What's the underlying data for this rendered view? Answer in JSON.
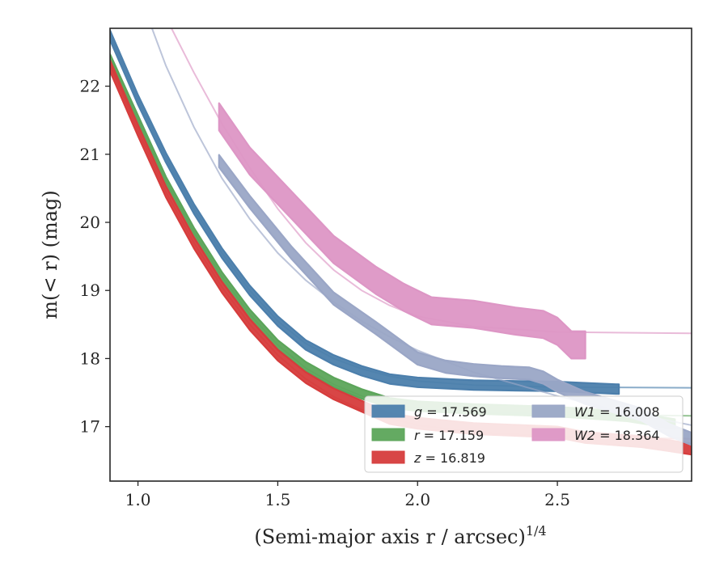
{
  "chart_data": {
    "type": "line",
    "xlabel": "(Semi-major axis r / arcsec)",
    "xlabel_sup": "1/4",
    "ylabel": "m(< r) (mag)",
    "xlim": [
      0.9,
      2.98
    ],
    "ylim": [
      22.85,
      16.2
    ],
    "y_inverted": true,
    "grid": false,
    "legend_position": "lower-right",
    "xticks": [
      {
        "value": 1.0,
        "label": "1.0"
      },
      {
        "value": 1.5,
        "label": "1.5"
      },
      {
        "value": 2.0,
        "label": "2.0"
      },
      {
        "value": 2.5,
        "label": "2.5"
      }
    ],
    "yticks": [
      {
        "value": 17,
        "label": "17"
      },
      {
        "value": 18,
        "label": "18"
      },
      {
        "value": 19,
        "label": "19"
      },
      {
        "value": 20,
        "label": "20"
      },
      {
        "value": 21,
        "label": "21"
      },
      {
        "value": 22,
        "label": "22"
      }
    ],
    "legend_columns": [
      [
        0,
        1,
        2
      ],
      [
        3,
        4
      ]
    ],
    "series": [
      {
        "name": "g = 17.569",
        "var": "g",
        "mag": "17.569",
        "color": "#4c7fac",
        "band": 0.07,
        "x": [
          0.9,
          1.0,
          1.1,
          1.2,
          1.3,
          1.4,
          1.5,
          1.6,
          1.7,
          1.8,
          1.9,
          2.0,
          2.2,
          2.5,
          2.72
        ],
        "y": [
          22.75,
          21.8,
          20.95,
          20.2,
          19.55,
          19.0,
          18.55,
          18.2,
          17.98,
          17.82,
          17.7,
          17.65,
          17.61,
          17.59,
          17.55
        ],
        "model_x": [
          0.9,
          1.0,
          1.1,
          1.2,
          1.3,
          1.4,
          1.5,
          1.6,
          1.7,
          1.8,
          1.9,
          2.0,
          2.2,
          2.5,
          2.98
        ],
        "model_y": [
          22.75,
          21.8,
          20.95,
          20.2,
          19.55,
          19.0,
          18.55,
          18.22,
          18.0,
          17.85,
          17.74,
          17.67,
          17.61,
          17.58,
          17.57
        ]
      },
      {
        "name": "r = 17.159",
        "var": "r",
        "mag": "17.159",
        "color": "#5ca55a",
        "band": 0.07,
        "x": [
          0.9,
          1.0,
          1.1,
          1.2,
          1.3,
          1.4,
          1.5,
          1.6,
          1.7,
          1.8,
          1.9,
          2.0,
          2.2,
          2.5,
          2.75,
          2.92
        ],
        "y": [
          22.4,
          21.5,
          20.6,
          19.85,
          19.2,
          18.65,
          18.2,
          17.88,
          17.65,
          17.48,
          17.35,
          17.3,
          17.26,
          17.22,
          17.15,
          17.04
        ],
        "model_x": [
          0.9,
          1.0,
          1.1,
          1.2,
          1.3,
          1.4,
          1.5,
          1.6,
          1.7,
          1.8,
          1.9,
          2.0,
          2.2,
          2.5,
          2.98
        ],
        "model_y": [
          22.4,
          21.5,
          20.6,
          19.85,
          19.2,
          18.65,
          18.2,
          17.86,
          17.62,
          17.45,
          17.33,
          17.27,
          17.22,
          17.18,
          17.16
        ]
      },
      {
        "name": "z = 16.819",
        "var": "z",
        "mag": "16.819",
        "color": "#d63c3c",
        "band": 0.08,
        "x": [
          0.9,
          1.0,
          1.1,
          1.2,
          1.3,
          1.4,
          1.5,
          1.6,
          1.7,
          1.8,
          1.9,
          2.0,
          2.2,
          2.5,
          2.6,
          2.8,
          2.9,
          2.98
        ],
        "y": [
          22.3,
          21.35,
          20.45,
          19.7,
          19.05,
          18.5,
          18.05,
          17.72,
          17.48,
          17.3,
          17.12,
          17.05,
          16.97,
          16.92,
          16.84,
          16.78,
          16.72,
          16.67
        ],
        "model_x": [
          0.9,
          1.0,
          1.1,
          1.2,
          1.3,
          1.4,
          1.5,
          1.6,
          1.7,
          1.8,
          1.9,
          2.0,
          2.2,
          2.5,
          2.98
        ],
        "model_y": [
          22.3,
          21.35,
          20.45,
          19.7,
          19.05,
          18.5,
          18.05,
          17.7,
          17.44,
          17.25,
          17.12,
          17.02,
          16.92,
          16.85,
          16.82
        ]
      },
      {
        "name": "W1 = 16.008",
        "var": "W1",
        "mag": "16.008",
        "color": "#9aa6c6",
        "band": 0.09,
        "x": [
          1.29,
          1.4,
          1.55,
          1.7,
          1.85,
          2.0,
          2.1,
          2.2,
          2.3,
          2.4,
          2.45,
          2.5,
          2.6,
          2.7,
          2.8,
          2.9,
          2.98
        ],
        "y": [
          20.9,
          20.3,
          19.55,
          18.88,
          18.45,
          18.0,
          17.88,
          17.83,
          17.8,
          17.78,
          17.72,
          17.6,
          17.42,
          17.3,
          17.18,
          16.95,
          16.82
        ],
        "model_x": [
          1.05,
          1.1,
          1.2,
          1.3,
          1.4,
          1.5,
          1.6,
          1.7,
          1.8,
          1.9,
          2.0,
          2.2,
          2.5,
          2.7,
          2.98
        ],
        "model_y": [
          22.85,
          22.3,
          21.4,
          20.65,
          20.05,
          19.55,
          19.15,
          18.83,
          18.55,
          18.32,
          18.12,
          17.8,
          17.45,
          17.25,
          17.02
        ]
      },
      {
        "name": "W2 = 18.364",
        "var": "W2",
        "mag": "18.364",
        "color": "#dd96c5",
        "band": 0.2,
        "x": [
          1.29,
          1.4,
          1.55,
          1.7,
          1.85,
          1.95,
          2.05,
          2.2,
          2.35,
          2.45,
          2.5,
          2.55,
          2.6
        ],
        "y": [
          21.55,
          20.9,
          20.25,
          19.6,
          19.15,
          18.9,
          18.7,
          18.65,
          18.55,
          18.5,
          18.4,
          18.2,
          18.2
        ],
        "model_x": [
          1.12,
          1.2,
          1.3,
          1.4,
          1.5,
          1.6,
          1.7,
          1.8,
          1.9,
          2.0,
          2.2,
          2.5,
          2.98
        ],
        "model_y": [
          22.85,
          22.2,
          21.45,
          20.8,
          20.2,
          19.7,
          19.3,
          19.0,
          18.78,
          18.62,
          18.47,
          18.39,
          18.37
        ]
      }
    ]
  }
}
